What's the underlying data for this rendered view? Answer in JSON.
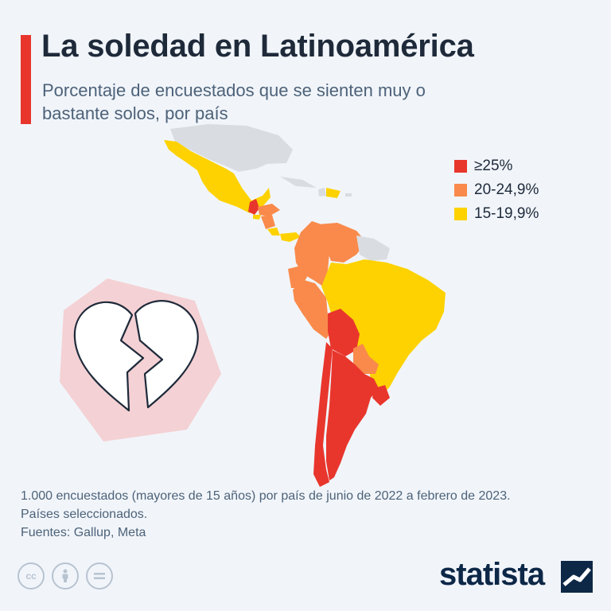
{
  "header": {
    "title": "La soledad en Latinoamérica",
    "subtitle": "Porcentaje de encuestados que se sienten muy o bastante solos, por país"
  },
  "legend": [
    {
      "label": "≥25%",
      "color": "#e8362d"
    },
    {
      "label": "20-24,9%",
      "color": "#f98a4b"
    },
    {
      "label": "15-19,9%",
      "color": "#fdd200"
    }
  ],
  "map": {
    "countries_shown": {
      "ge_25": [
        "Guatemala",
        "Bolivia",
        "Chile",
        "Argentina",
        "Uruguay"
      ],
      "20_24_9": [
        "Honduras",
        "Nicaragua",
        "Colombia",
        "Venezuela",
        "Ecuador",
        "Perú",
        "Paraguay"
      ],
      "15_19_9": [
        "México",
        "El Salvador",
        "Costa Rica",
        "Panamá",
        "República Dominicana",
        "Brasil"
      ]
    },
    "no_data_color": "#d9dde2",
    "illustration": "broken-heart-icon"
  },
  "footer": {
    "note_line1": "1.000 encuestados (mayores de 15 años) por país de junio de 2022 a febrero de 2023.",
    "note_line2": "Países seleccionados.",
    "sources": "Fuentes: Gallup, Meta",
    "license_icons": [
      "cc-icon",
      "by-icon",
      "nd-icon"
    ],
    "brand": "statista"
  }
}
